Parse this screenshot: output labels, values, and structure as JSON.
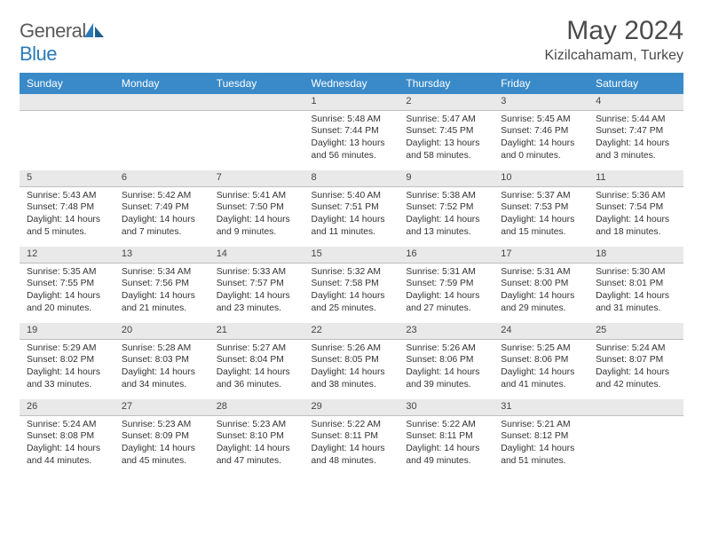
{
  "logo": {
    "text_gray": "General",
    "text_blue": "Blue"
  },
  "title": "May 2024",
  "location": "Kizilcahamam, Turkey",
  "weekdays": [
    "Sunday",
    "Monday",
    "Tuesday",
    "Wednesday",
    "Thursday",
    "Friday",
    "Saturday"
  ],
  "colors": {
    "header_bg": "#3a8ac9",
    "header_text": "#ffffff",
    "daynum_bg": "#e9e9e9",
    "daynum_border": "#bfbfbf",
    "body_text": "#333333",
    "logo_gray": "#5a5a5a",
    "logo_blue": "#2a7ab8"
  },
  "typography": {
    "title_fontsize": 30,
    "location_fontsize": 16,
    "weekday_fontsize": 12,
    "daynum_fontsize": 11,
    "cell_fontsize": 10.3
  },
  "weeks": [
    [
      null,
      null,
      null,
      {
        "n": "1",
        "rise": "5:48 AM",
        "set": "7:44 PM",
        "dayl": "13 hours and 56 minutes."
      },
      {
        "n": "2",
        "rise": "5:47 AM",
        "set": "7:45 PM",
        "dayl": "13 hours and 58 minutes."
      },
      {
        "n": "3",
        "rise": "5:45 AM",
        "set": "7:46 PM",
        "dayl": "14 hours and 0 minutes."
      },
      {
        "n": "4",
        "rise": "5:44 AM",
        "set": "7:47 PM",
        "dayl": "14 hours and 3 minutes."
      }
    ],
    [
      {
        "n": "5",
        "rise": "5:43 AM",
        "set": "7:48 PM",
        "dayl": "14 hours and 5 minutes."
      },
      {
        "n": "6",
        "rise": "5:42 AM",
        "set": "7:49 PM",
        "dayl": "14 hours and 7 minutes."
      },
      {
        "n": "7",
        "rise": "5:41 AM",
        "set": "7:50 PM",
        "dayl": "14 hours and 9 minutes."
      },
      {
        "n": "8",
        "rise": "5:40 AM",
        "set": "7:51 PM",
        "dayl": "14 hours and 11 minutes."
      },
      {
        "n": "9",
        "rise": "5:38 AM",
        "set": "7:52 PM",
        "dayl": "14 hours and 13 minutes."
      },
      {
        "n": "10",
        "rise": "5:37 AM",
        "set": "7:53 PM",
        "dayl": "14 hours and 15 minutes."
      },
      {
        "n": "11",
        "rise": "5:36 AM",
        "set": "7:54 PM",
        "dayl": "14 hours and 18 minutes."
      }
    ],
    [
      {
        "n": "12",
        "rise": "5:35 AM",
        "set": "7:55 PM",
        "dayl": "14 hours and 20 minutes."
      },
      {
        "n": "13",
        "rise": "5:34 AM",
        "set": "7:56 PM",
        "dayl": "14 hours and 21 minutes."
      },
      {
        "n": "14",
        "rise": "5:33 AM",
        "set": "7:57 PM",
        "dayl": "14 hours and 23 minutes."
      },
      {
        "n": "15",
        "rise": "5:32 AM",
        "set": "7:58 PM",
        "dayl": "14 hours and 25 minutes."
      },
      {
        "n": "16",
        "rise": "5:31 AM",
        "set": "7:59 PM",
        "dayl": "14 hours and 27 minutes."
      },
      {
        "n": "17",
        "rise": "5:31 AM",
        "set": "8:00 PM",
        "dayl": "14 hours and 29 minutes."
      },
      {
        "n": "18",
        "rise": "5:30 AM",
        "set": "8:01 PM",
        "dayl": "14 hours and 31 minutes."
      }
    ],
    [
      {
        "n": "19",
        "rise": "5:29 AM",
        "set": "8:02 PM",
        "dayl": "14 hours and 33 minutes."
      },
      {
        "n": "20",
        "rise": "5:28 AM",
        "set": "8:03 PM",
        "dayl": "14 hours and 34 minutes."
      },
      {
        "n": "21",
        "rise": "5:27 AM",
        "set": "8:04 PM",
        "dayl": "14 hours and 36 minutes."
      },
      {
        "n": "22",
        "rise": "5:26 AM",
        "set": "8:05 PM",
        "dayl": "14 hours and 38 minutes."
      },
      {
        "n": "23",
        "rise": "5:26 AM",
        "set": "8:06 PM",
        "dayl": "14 hours and 39 minutes."
      },
      {
        "n": "24",
        "rise": "5:25 AM",
        "set": "8:06 PM",
        "dayl": "14 hours and 41 minutes."
      },
      {
        "n": "25",
        "rise": "5:24 AM",
        "set": "8:07 PM",
        "dayl": "14 hours and 42 minutes."
      }
    ],
    [
      {
        "n": "26",
        "rise": "5:24 AM",
        "set": "8:08 PM",
        "dayl": "14 hours and 44 minutes."
      },
      {
        "n": "27",
        "rise": "5:23 AM",
        "set": "8:09 PM",
        "dayl": "14 hours and 45 minutes."
      },
      {
        "n": "28",
        "rise": "5:23 AM",
        "set": "8:10 PM",
        "dayl": "14 hours and 47 minutes."
      },
      {
        "n": "29",
        "rise": "5:22 AM",
        "set": "8:11 PM",
        "dayl": "14 hours and 48 minutes."
      },
      {
        "n": "30",
        "rise": "5:22 AM",
        "set": "8:11 PM",
        "dayl": "14 hours and 49 minutes."
      },
      {
        "n": "31",
        "rise": "5:21 AM",
        "set": "8:12 PM",
        "dayl": "14 hours and 51 minutes."
      },
      null
    ]
  ],
  "labels": {
    "sunrise": "Sunrise: ",
    "sunset": "Sunset: ",
    "daylight": "Daylight: "
  }
}
